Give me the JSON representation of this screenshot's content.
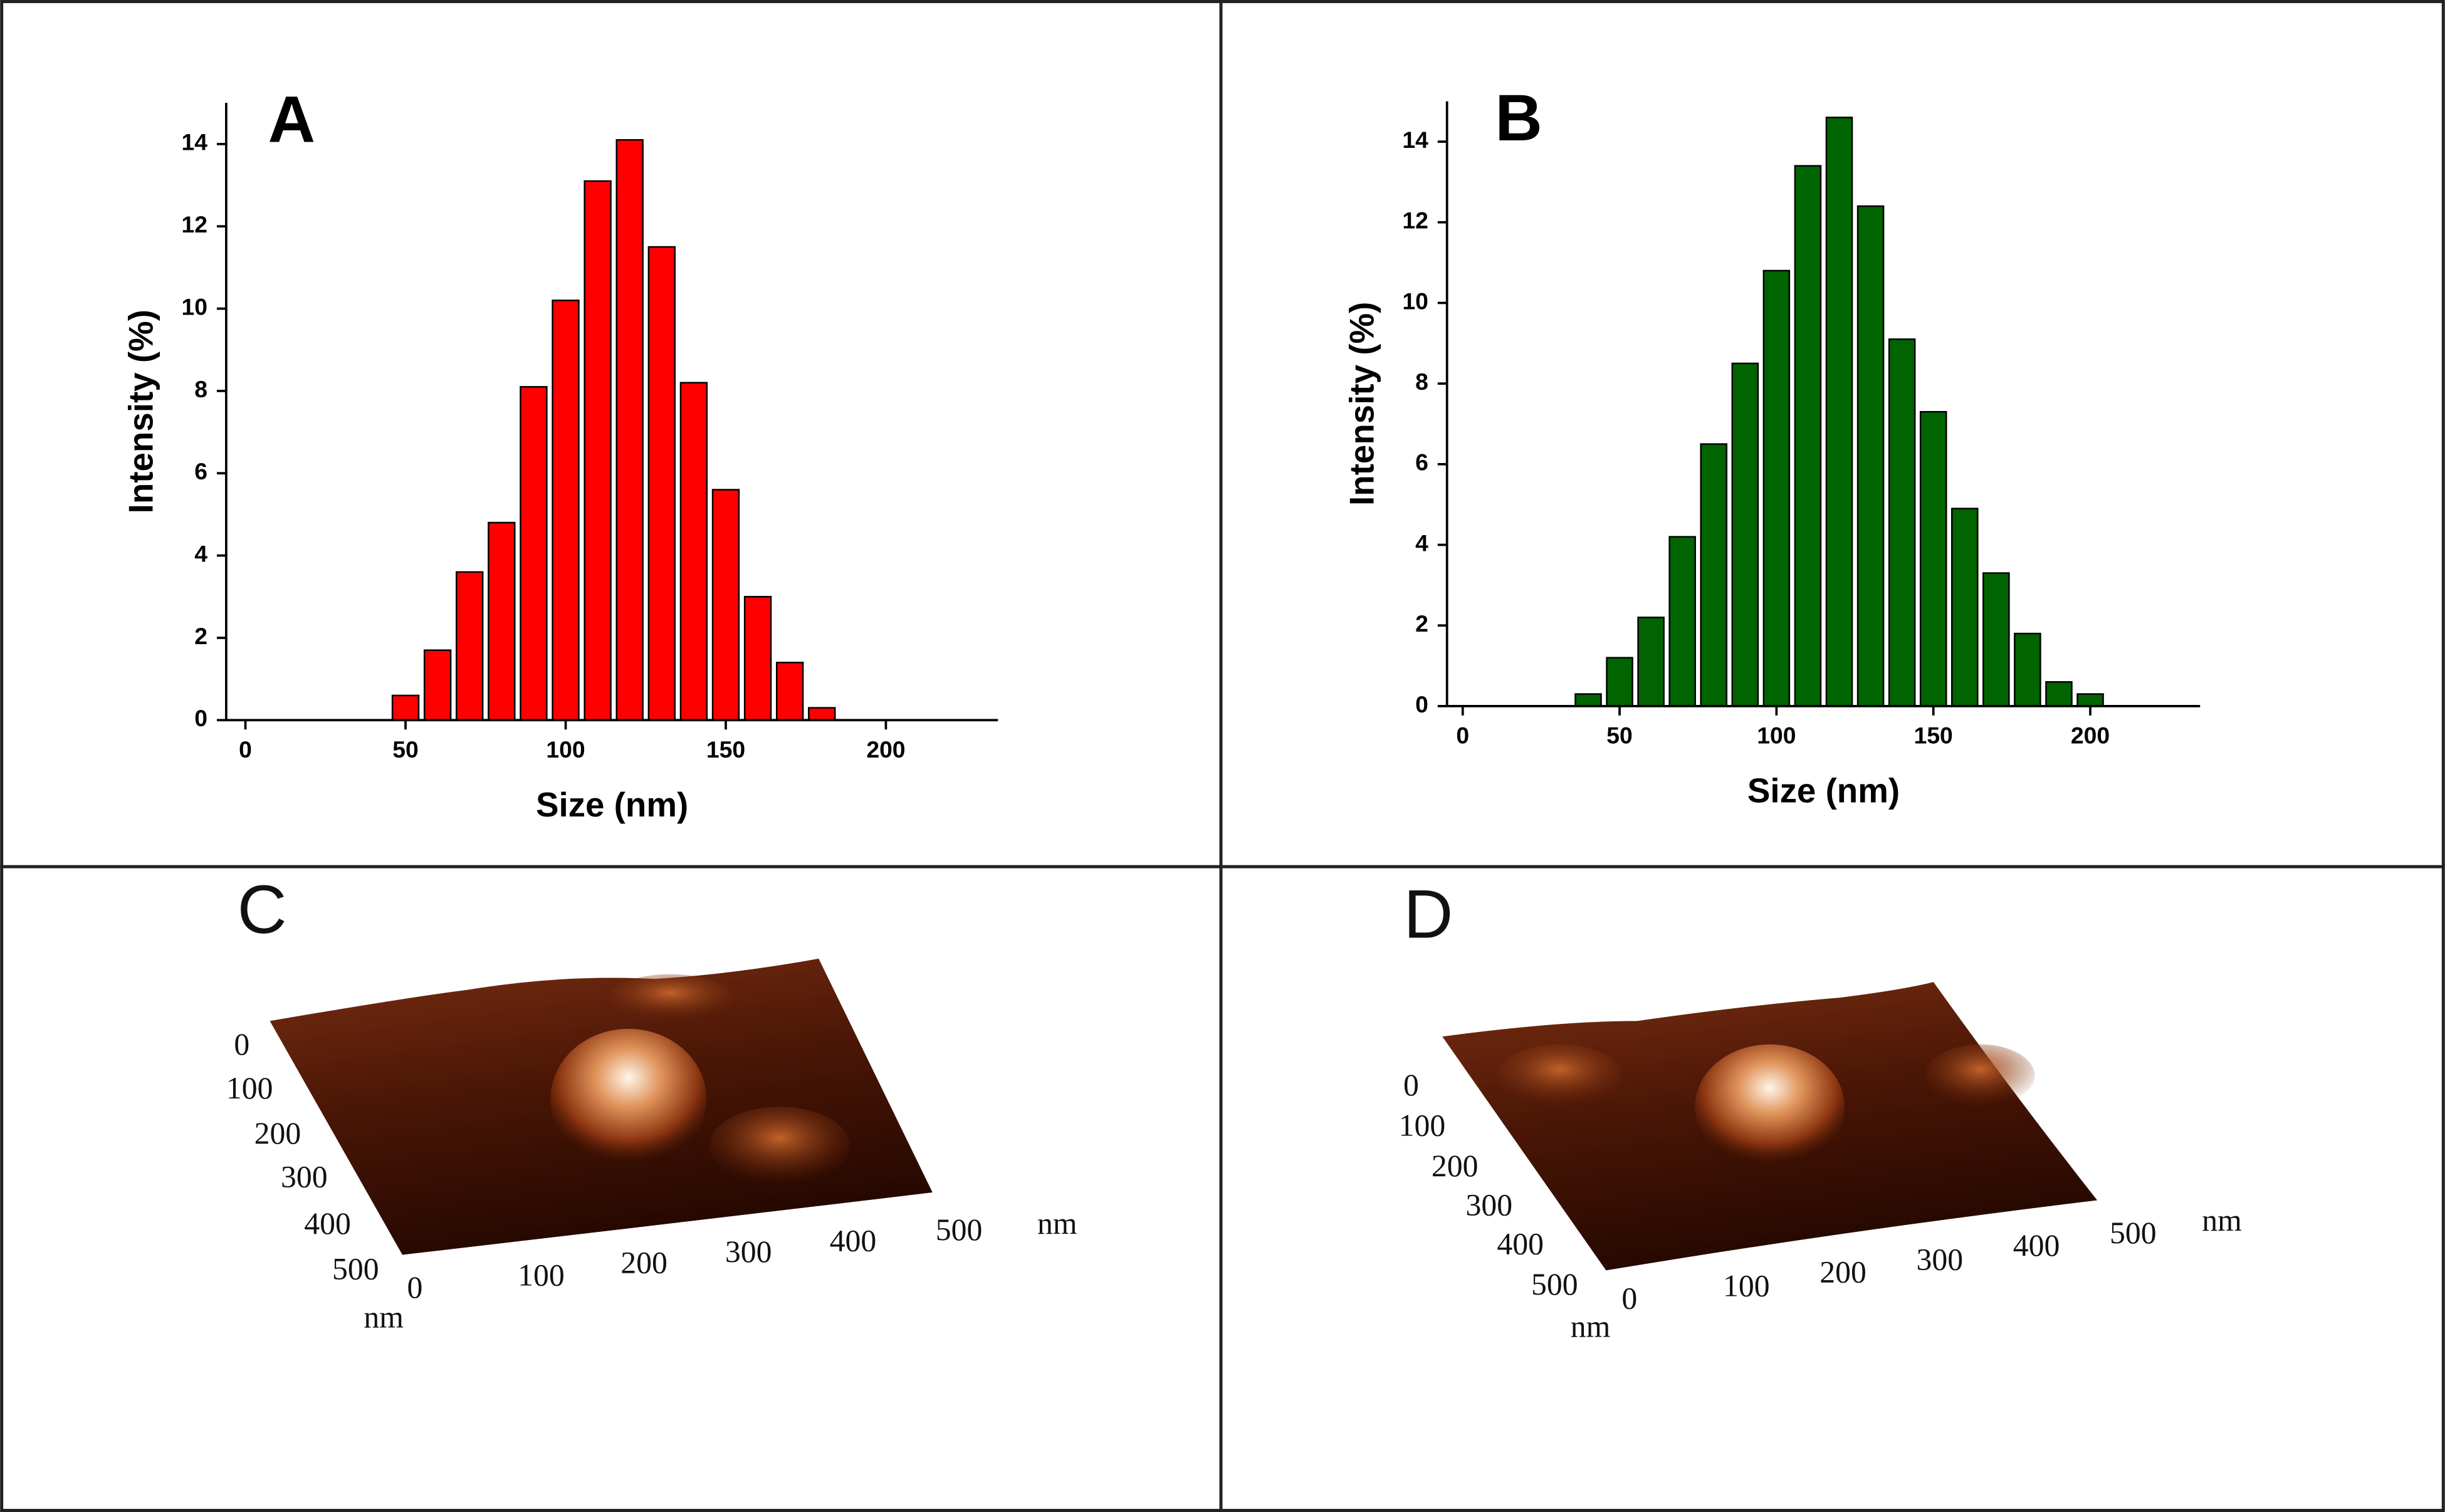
{
  "chart_data": [
    {
      "type": "bar",
      "label": "A",
      "xlabel": "Size (nm)",
      "ylabel": "Intensity (%)",
      "color": "#ff0000",
      "x": [
        50,
        60,
        70,
        80,
        90,
        100,
        110,
        120,
        130,
        140,
        150,
        160,
        170,
        180
      ],
      "values": [
        0.6,
        1.7,
        3.6,
        4.8,
        8.1,
        10.2,
        13.1,
        14.1,
        11.5,
        8.2,
        5.6,
        3.0,
        1.4,
        0.3
      ],
      "xlim": [
        -6,
        235
      ],
      "ylim": [
        0,
        15
      ],
      "xticks": [
        0,
        50,
        100,
        150,
        200
      ],
      "yticks": [
        0,
        2,
        4,
        6,
        8,
        10,
        12,
        14
      ]
    },
    {
      "type": "bar",
      "label": "B",
      "xlabel": "Size (nm)",
      "ylabel": "Intensity (%)",
      "color": "#006400",
      "x": [
        40,
        50,
        60,
        70,
        80,
        90,
        100,
        110,
        120,
        130,
        140,
        150,
        160,
        170,
        180,
        190,
        200
      ],
      "values": [
        0.3,
        1.2,
        2.2,
        4.2,
        6.5,
        8.5,
        10.8,
        13.4,
        14.6,
        12.4,
        9.1,
        7.3,
        4.9,
        3.3,
        1.8,
        0.6,
        0.3
      ],
      "xlim": [
        -5,
        235
      ],
      "ylim": [
        0,
        15
      ],
      "xticks": [
        0,
        50,
        100,
        150,
        200
      ],
      "yticks": [
        0,
        2,
        4,
        6,
        8,
        10,
        12,
        14
      ]
    }
  ],
  "afm_images": [
    {
      "label": "C",
      "x_tick_labels": [
        "0",
        "100",
        "200",
        "300",
        "400",
        "500"
      ],
      "y_tick_labels": [
        "0",
        "100",
        "200",
        "300",
        "400",
        "500"
      ],
      "x_unit": "nm",
      "y_unit": "nm"
    },
    {
      "label": "D",
      "x_tick_labels": [
        "0",
        "100",
        "200",
        "300",
        "400",
        "500"
      ],
      "y_tick_labels": [
        "0",
        "100",
        "200",
        "300",
        "400",
        "500"
      ],
      "x_unit": "nm",
      "y_unit": "nm"
    }
  ]
}
